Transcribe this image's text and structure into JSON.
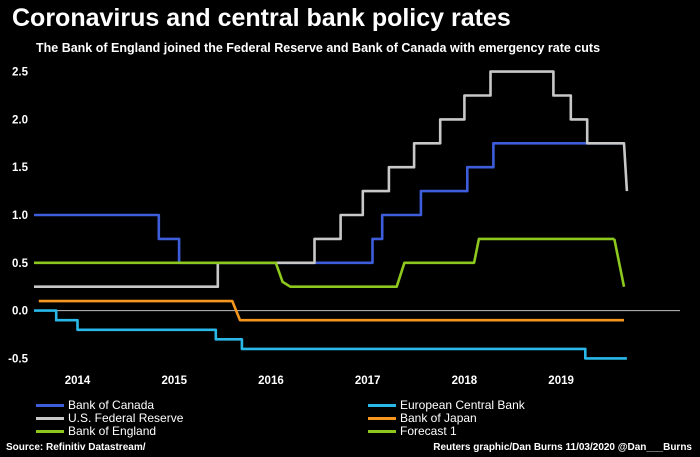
{
  "header": {
    "title": "Coronavirus and central bank policy rates",
    "subtitle": "The Bank of England joined the Federal Reserve and Bank of Canada with emergency rate cuts"
  },
  "footer": {
    "source": "Source: Refinitiv Datastream/",
    "credit": "Reuters graphic/Dan Burns 11/03/2020 @Dan___Burns"
  },
  "chart_data": {
    "type": "line",
    "title": "Coronavirus and central bank policy rates",
    "subtitle": "The Bank of England joined the Federal Reserve and Bank of Canada with emergency rate cuts",
    "xlabel": "",
    "ylabel": "",
    "xlim": [
      2013.55,
      2020.25
    ],
    "ylim": [
      -0.6,
      2.6
    ],
    "x_ticks": [
      2014,
      2015,
      2016,
      2017,
      2018,
      2019
    ],
    "x_tick_labels": [
      "2014",
      "2015",
      "2016",
      "2017",
      "2018",
      "2019"
    ],
    "y_ticks": [
      -0.5,
      0.0,
      0.5,
      1.0,
      1.5,
      2.0,
      2.5
    ],
    "y_tick_labels": [
      "-0.5",
      "0.0",
      "0.5",
      "1.0",
      "1.5",
      "2.0",
      "2.5"
    ],
    "zero_line": true,
    "grid": false,
    "legend_position": "bottom",
    "series": [
      {
        "name": "Bank of Canada",
        "color": "#3d5ddb",
        "points": [
          [
            2013.55,
            1.0
          ],
          [
            2014.84,
            1.0
          ],
          [
            2014.84,
            0.75
          ],
          [
            2015.05,
            0.75
          ],
          [
            2015.05,
            0.5
          ],
          [
            2017.05,
            0.5
          ],
          [
            2017.05,
            0.75
          ],
          [
            2017.15,
            0.75
          ],
          [
            2017.15,
            1.0
          ],
          [
            2017.55,
            1.0
          ],
          [
            2017.55,
            1.25
          ],
          [
            2018.03,
            1.25
          ],
          [
            2018.03,
            1.5
          ],
          [
            2018.3,
            1.5
          ],
          [
            2018.3,
            1.75
          ],
          [
            2019.65,
            1.75
          ]
        ]
      },
      {
        "name": "European Central Bank",
        "color": "#29b8e8",
        "points": [
          [
            2013.55,
            0.0
          ],
          [
            2013.78,
            0.0
          ],
          [
            2013.78,
            -0.1
          ],
          [
            2014.0,
            -0.1
          ],
          [
            2014.0,
            -0.2
          ],
          [
            2015.43,
            -0.2
          ],
          [
            2015.43,
            -0.3
          ],
          [
            2015.7,
            -0.3
          ],
          [
            2015.7,
            -0.4
          ],
          [
            2019.25,
            -0.4
          ],
          [
            2019.25,
            -0.5
          ],
          [
            2019.68,
            -0.5
          ]
        ]
      },
      {
        "name": "U.S. Federal Reserve",
        "color": "#c8c8c8",
        "points": [
          [
            2013.55,
            0.25
          ],
          [
            2015.45,
            0.25
          ],
          [
            2015.45,
            0.5
          ],
          [
            2016.45,
            0.5
          ],
          [
            2016.45,
            0.75
          ],
          [
            2016.72,
            0.75
          ],
          [
            2016.72,
            1.0
          ],
          [
            2016.95,
            1.0
          ],
          [
            2016.95,
            1.25
          ],
          [
            2017.22,
            1.25
          ],
          [
            2017.22,
            1.5
          ],
          [
            2017.48,
            1.5
          ],
          [
            2017.48,
            1.75
          ],
          [
            2017.75,
            1.75
          ],
          [
            2017.75,
            2.0
          ],
          [
            2018.0,
            2.0
          ],
          [
            2018.0,
            2.25
          ],
          [
            2018.27,
            2.25
          ],
          [
            2018.27,
            2.5
          ],
          [
            2018.92,
            2.5
          ],
          [
            2018.92,
            2.25
          ],
          [
            2019.1,
            2.25
          ],
          [
            2019.1,
            2.0
          ],
          [
            2019.27,
            2.0
          ],
          [
            2019.27,
            1.75
          ],
          [
            2019.65,
            1.75
          ],
          [
            2019.68,
            1.25
          ]
        ]
      },
      {
        "name": "Bank of Japan",
        "color": "#f5961e",
        "points": [
          [
            2013.6,
            0.1
          ],
          [
            2015.6,
            0.1
          ],
          [
            2015.68,
            -0.1
          ],
          [
            2019.65,
            -0.1
          ]
        ]
      },
      {
        "name": "Bank of England",
        "color": "#8cc81e",
        "points": [
          [
            2013.55,
            0.5
          ],
          [
            2016.05,
            0.5
          ],
          [
            2016.12,
            0.3
          ],
          [
            2016.2,
            0.25
          ],
          [
            2017.3,
            0.25
          ],
          [
            2017.38,
            0.5
          ],
          [
            2017.5,
            0.5
          ],
          [
            2017.62,
            0.5
          ],
          [
            2018.1,
            0.5
          ],
          [
            2018.15,
            0.75
          ],
          [
            2019.55,
            0.75
          ]
        ]
      },
      {
        "name": "Forecast 1",
        "color": "#8cc81e",
        "points": [
          [
            2019.55,
            0.75
          ],
          [
            2019.65,
            0.25
          ]
        ]
      }
    ]
  },
  "legend": [
    {
      "label": "Bank of Canada",
      "color": "#3d5ddb"
    },
    {
      "label": "European Central Bank",
      "color": "#29b8e8"
    },
    {
      "label": "U.S. Federal Reserve",
      "color": "#c8c8c8"
    },
    {
      "label": "Bank of Japan",
      "color": "#f5961e"
    },
    {
      "label": "Bank of England",
      "color": "#8cc81e"
    },
    {
      "label": "Forecast 1",
      "color": "#8cc81e"
    }
  ]
}
